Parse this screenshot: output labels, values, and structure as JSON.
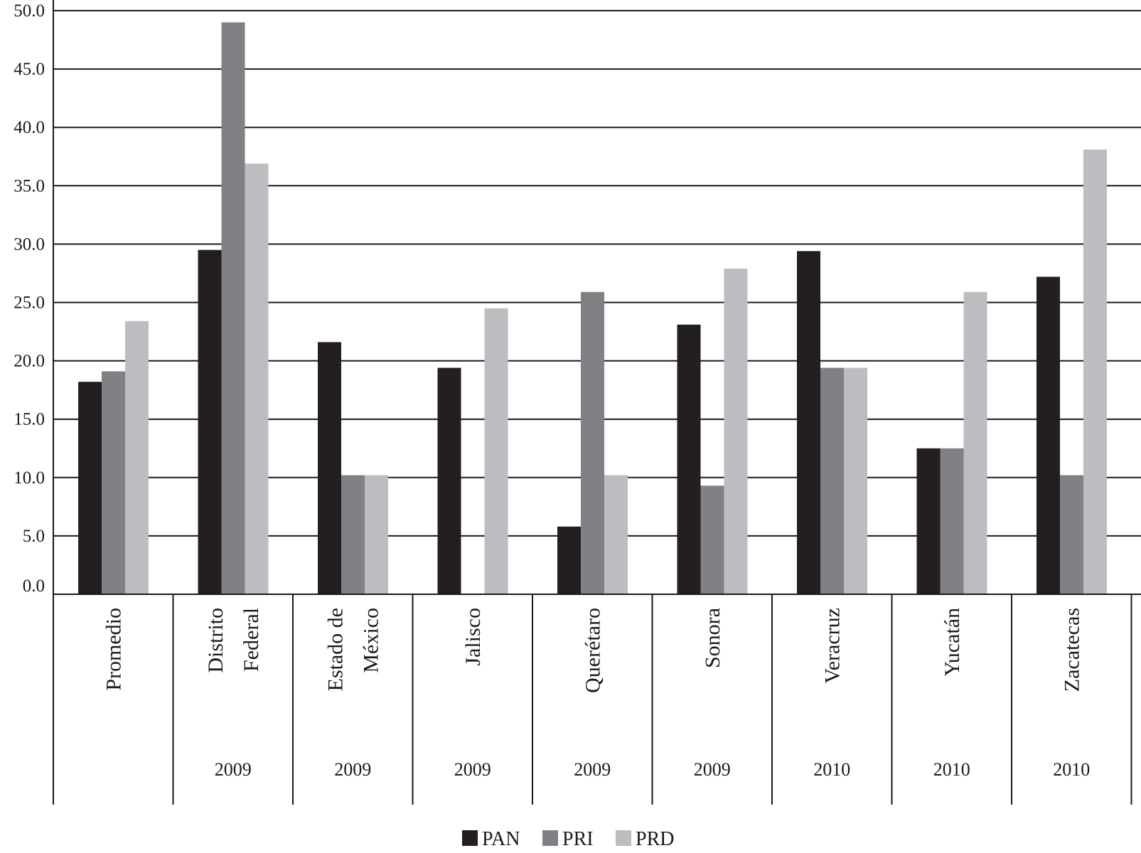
{
  "chart_data": {
    "type": "bar",
    "categories": [
      "Promedio",
      "Distrito Federal",
      "Estado de México",
      "Jalisco",
      "Querétaro",
      "Sonora",
      "Veracruz",
      "Yucatán",
      "Zacatecas"
    ],
    "category_lines": [
      [
        "Promedio"
      ],
      [
        "Distrito",
        "Federal"
      ],
      [
        "Estado de",
        "México"
      ],
      [
        "Jalisco"
      ],
      [
        "Querétaro"
      ],
      [
        "Sonora"
      ],
      [
        "Veracruz"
      ],
      [
        "Yucatán"
      ],
      [
        "Zacatecas"
      ]
    ],
    "years": [
      "",
      "2009",
      "2009",
      "2009",
      "2009",
      "2009",
      "2010",
      "2010",
      "2010"
    ],
    "series": [
      {
        "name": "PAN",
        "color": "#231f20",
        "values": [
          18.2,
          29.5,
          21.6,
          19.4,
          5.8,
          23.1,
          29.4,
          12.5,
          27.2
        ]
      },
      {
        "name": "PRI",
        "color": "#808184",
        "values": [
          19.1,
          49.0,
          10.2,
          0.0,
          25.9,
          9.3,
          19.4,
          12.5,
          10.2
        ]
      },
      {
        "name": "PRD",
        "color": "#bcbdc0",
        "values": [
          23.4,
          36.9,
          10.2,
          24.5,
          10.2,
          27.9,
          19.4,
          25.9,
          38.1
        ]
      }
    ],
    "yticks": [
      "0.0",
      "5.0",
      "10.0",
      "15.0",
      "20.0",
      "25.0",
      "30.0",
      "35.0",
      "40.0",
      "45.0",
      "50.0"
    ],
    "ylim": [
      0,
      50
    ],
    "grid": true,
    "legend_position": "bottom-center"
  }
}
